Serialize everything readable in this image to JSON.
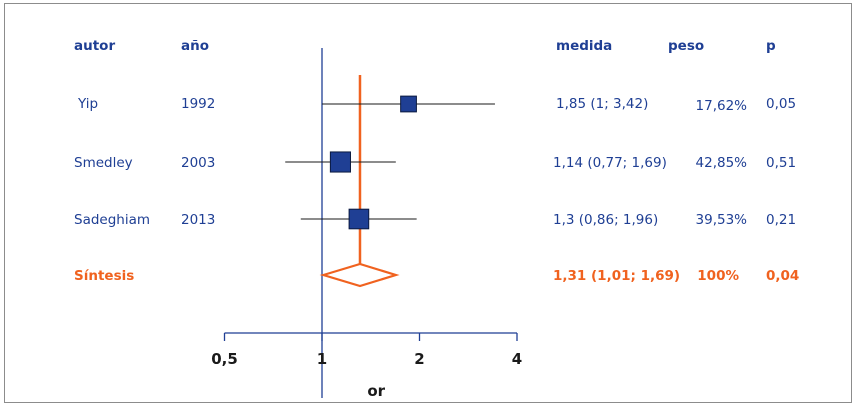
{
  "headers": {
    "author": "autor",
    "year": "año",
    "measure": "medida",
    "weight": "peso",
    "p": "p"
  },
  "chart_data": {
    "type": "forest",
    "xlabel": "or",
    "xscale": "log",
    "xlim": [
      0.5,
      4
    ],
    "xticks": [
      0.5,
      1,
      2,
      4
    ],
    "xtick_labels": [
      "0,5",
      "1",
      "2",
      "4"
    ],
    "null_line": 1,
    "studies": [
      {
        "author": "Yip",
        "year": "1992",
        "or": 1.85,
        "lo": 1.0,
        "hi": 3.42,
        "measure": "1,85 (1; 3,42)",
        "weight": "17,62%",
        "weight_value": 17.62,
        "p": "0,05"
      },
      {
        "author": "Smedley",
        "year": "2003",
        "or": 1.14,
        "lo": 0.77,
        "hi": 1.69,
        "measure": "1,14 (0,77; 1,69)",
        "weight": "42,85%",
        "weight_value": 42.85,
        "p": "0,51"
      },
      {
        "author": "Sadeghiam",
        "year": "2013",
        "or": 1.3,
        "lo": 0.86,
        "hi": 1.96,
        "measure": "1,3 (0,86; 1,96)",
        "weight": "39,53%",
        "weight_value": 39.53,
        "p": "0,21"
      }
    ],
    "summary": {
      "label": "Síntesis",
      "or": 1.31,
      "lo": 1.01,
      "hi": 1.69,
      "measure": "1,31 (1,01; 1,69)",
      "weight": "100%",
      "p": "0,04"
    },
    "colors": {
      "text": "#1f3f94",
      "summary": "#f0621f",
      "box": "#1f3f94",
      "box_edge": "#0b1a40",
      "axis": "#1f3f94"
    }
  }
}
